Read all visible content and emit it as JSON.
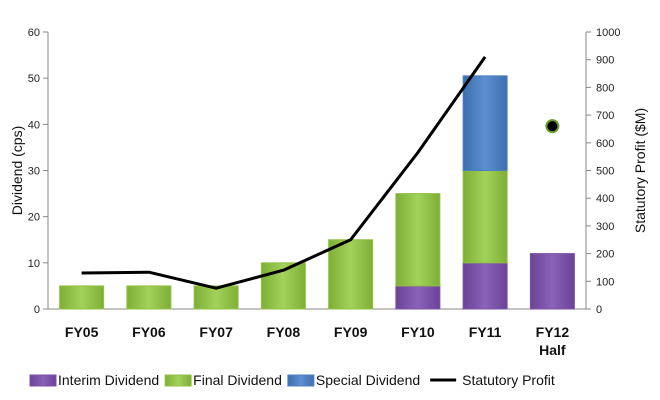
{
  "chart_data": {
    "type": "bar",
    "stacked": true,
    "categories": [
      "FY05",
      "FY06",
      "FY07",
      "FY08",
      "FY09",
      "FY10",
      "FY11",
      "FY12\nHalf"
    ],
    "ylabel": "Dividend (cps)",
    "y2label": "Statutory Profit ($M)",
    "ylim": [
      0,
      60
    ],
    "y_ticks": [
      0,
      10,
      20,
      30,
      40,
      50,
      60
    ],
    "y2lim": [
      0,
      1000
    ],
    "y2_ticks": [
      0,
      100,
      200,
      300,
      400,
      500,
      600,
      700,
      800,
      900,
      1000
    ],
    "grid": false,
    "legend_position": "bottom",
    "series": [
      {
        "name": "Interim Dividend",
        "color": "#7a52a8",
        "values": [
          0,
          0,
          0,
          0,
          0,
          5,
          10,
          12
        ]
      },
      {
        "name": "Final Dividend",
        "color": "#92c046",
        "values": [
          5,
          5,
          5,
          10,
          15,
          20,
          20,
          0
        ]
      },
      {
        "name": "Special Dividend",
        "color": "#4f7fbf",
        "values": [
          0,
          0,
          0,
          0,
          0,
          0,
          20.5,
          0
        ]
      }
    ],
    "line_series": {
      "name": "Statutory Profit",
      "axis": "right",
      "color": "#000000",
      "x_end": "FY11",
      "values": [
        130,
        133,
        75,
        140,
        250,
        565,
        910
      ]
    },
    "marker": {
      "category": "FY12\nHalf",
      "value": 660,
      "axis": "right",
      "color": "#000000"
    }
  }
}
